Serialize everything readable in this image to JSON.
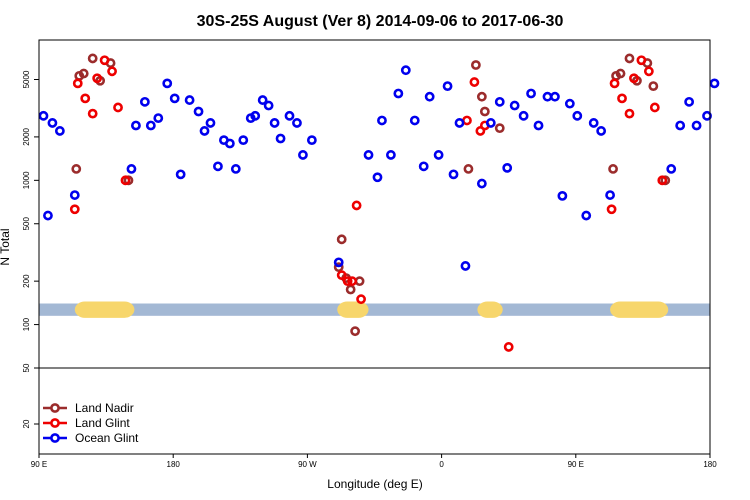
{
  "chart_data": {
    "type": "scatter",
    "title": "30S-25S August (Ver 8)   2014-09-06 to 2017-06-30",
    "xlabel": "Longitude (deg E)",
    "ylabel": "N Total",
    "x_scale": "longitude, 90E to 180 wrapping through 0 to 180",
    "x_range_deg_east_unwrapped": [
      90,
      540
    ],
    "y_scale": "log",
    "y_ticks": [
      20,
      50,
      100,
      200,
      500,
      1000,
      2000,
      5000
    ],
    "x_ticks": [
      {
        "deg": 90,
        "label": "90 E"
      },
      {
        "deg": 180,
        "label": "180"
      },
      {
        "deg": 270,
        "label": "90 W"
      },
      {
        "deg": 360,
        "label": "0"
      },
      {
        "deg": 450,
        "label": "90 E"
      },
      {
        "deg": 540,
        "label": "180"
      }
    ],
    "band_y_range": [
      115,
      140
    ],
    "land_segments_deg": [
      [
        114,
        154
      ],
      [
        290,
        311
      ],
      [
        384,
        401
      ],
      [
        473,
        512
      ]
    ],
    "panel_divider_y": 50,
    "colors": {
      "ocean_band": "#a3b8d4",
      "land_band": "#f7d66c",
      "land_nadir": "#9b2c2c",
      "land_glint": "#ee0000",
      "ocean_glint": "#0000ee"
    },
    "legend_position": "bottom-left",
    "series": [
      {
        "name": "Land Nadir",
        "color": "#9b2c2c",
        "points": [
          [
            115,
            1200
          ],
          [
            117,
            5300
          ],
          [
            120,
            5500
          ],
          [
            126,
            7000
          ],
          [
            131,
            4900
          ],
          [
            138,
            6500
          ],
          [
            150,
            1000
          ],
          [
            291,
            250
          ],
          [
            293,
            390
          ],
          [
            296,
            210
          ],
          [
            299,
            175
          ],
          [
            302,
            90
          ],
          [
            305,
            200
          ],
          [
            378,
            1200
          ],
          [
            383,
            6300
          ],
          [
            387,
            3800
          ],
          [
            389,
            3000
          ],
          [
            399,
            2300
          ],
          [
            475,
            1200
          ],
          [
            477,
            5300
          ],
          [
            480,
            5500
          ],
          [
            486,
            7000
          ],
          [
            491,
            4900
          ],
          [
            498,
            6500
          ],
          [
            502,
            4500
          ],
          [
            510,
            1000
          ]
        ]
      },
      {
        "name": "Land Glint",
        "color": "#ee0000",
        "points": [
          [
            114,
            630
          ],
          [
            116,
            4700
          ],
          [
            121,
            3700
          ],
          [
            126,
            2900
          ],
          [
            129,
            5100
          ],
          [
            134,
            6800
          ],
          [
            139,
            5700
          ],
          [
            143,
            3200
          ],
          [
            148,
            1000
          ],
          [
            293,
            220
          ],
          [
            297,
            200
          ],
          [
            300,
            200
          ],
          [
            303,
            670
          ],
          [
            306,
            150
          ],
          [
            377,
            2600
          ],
          [
            382,
            4800
          ],
          [
            386,
            2200
          ],
          [
            389,
            2400
          ],
          [
            405,
            70
          ],
          [
            474,
            630
          ],
          [
            476,
            4700
          ],
          [
            481,
            3700
          ],
          [
            486,
            2900
          ],
          [
            489,
            5100
          ],
          [
            494,
            6800
          ],
          [
            499,
            5700
          ],
          [
            503,
            3200
          ],
          [
            508,
            1000
          ]
        ]
      },
      {
        "name": "Ocean Glint",
        "color": "#0000ee",
        "points": [
          [
            93,
            2800
          ],
          [
            96,
            570
          ],
          [
            99,
            2500
          ],
          [
            104,
            2200
          ],
          [
            114,
            790
          ],
          [
            152,
            1200
          ],
          [
            155,
            2400
          ],
          [
            161,
            3500
          ],
          [
            165,
            2400
          ],
          [
            170,
            2700
          ],
          [
            176,
            4700
          ],
          [
            181,
            3700
          ],
          [
            185,
            1100
          ],
          [
            191,
            3600
          ],
          [
            197,
            3000
          ],
          [
            201,
            2200
          ],
          [
            205,
            2500
          ],
          [
            210,
            1250
          ],
          [
            214,
            1900
          ],
          [
            218,
            1800
          ],
          [
            222,
            1200
          ],
          [
            227,
            1900
          ],
          [
            232,
            2700
          ],
          [
            235,
            2800
          ],
          [
            240,
            3600
          ],
          [
            244,
            3300
          ],
          [
            248,
            2500
          ],
          [
            252,
            1950
          ],
          [
            258,
            2800
          ],
          [
            263,
            2500
          ],
          [
            267,
            1500
          ],
          [
            273,
            1900
          ],
          [
            291,
            270
          ],
          [
            311,
            1500
          ],
          [
            317,
            1050
          ],
          [
            320,
            2600
          ],
          [
            326,
            1500
          ],
          [
            331,
            4000
          ],
          [
            336,
            5800
          ],
          [
            342,
            2600
          ],
          [
            348,
            1250
          ],
          [
            352,
            3800
          ],
          [
            358,
            1500
          ],
          [
            364,
            4500
          ],
          [
            368,
            1100
          ],
          [
            372,
            2500
          ],
          [
            376,
            255
          ],
          [
            387,
            950
          ],
          [
            393,
            2500
          ],
          [
            399,
            3500
          ],
          [
            404,
            1220
          ],
          [
            409,
            3300
          ],
          [
            415,
            2800
          ],
          [
            420,
            4000
          ],
          [
            425,
            2400
          ],
          [
            431,
            3800
          ],
          [
            436,
            3800
          ],
          [
            441,
            780
          ],
          [
            446,
            3400
          ],
          [
            451,
            2800
          ],
          [
            457,
            570
          ],
          [
            462,
            2500
          ],
          [
            467,
            2200
          ],
          [
            473,
            790
          ],
          [
            514,
            1200
          ],
          [
            520,
            2400
          ],
          [
            526,
            3500
          ],
          [
            531,
            2400
          ],
          [
            538,
            2800
          ],
          [
            543,
            4700
          ]
        ]
      }
    ]
  }
}
